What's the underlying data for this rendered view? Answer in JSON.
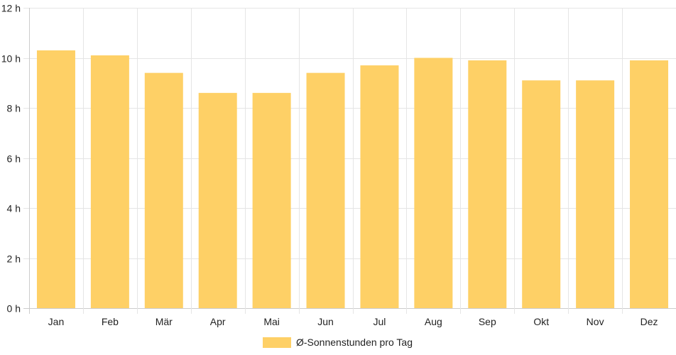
{
  "chart_data": {
    "type": "bar",
    "categories": [
      "Jan",
      "Feb",
      "Mär",
      "Apr",
      "Mai",
      "Jun",
      "Jul",
      "Aug",
      "Sep",
      "Okt",
      "Nov",
      "Dez"
    ],
    "series": [
      {
        "name": "Ø-Sonnenstunden pro Tag",
        "values": [
          10.3,
          10.1,
          9.4,
          8.6,
          8.6,
          9.4,
          9.7,
          10.0,
          9.9,
          9.1,
          9.1,
          9.9
        ]
      }
    ],
    "ylim": [
      0,
      12
    ],
    "y_ticks": [
      "0 h",
      "2 h",
      "4 h",
      "6 h",
      "8 h",
      "10 h",
      "12 h"
    ],
    "y_tick_values": [
      0,
      2,
      4,
      6,
      8,
      10,
      12
    ],
    "grid": true,
    "legend_position": "bottom",
    "colors": {
      "bar": "#fed066",
      "grid": "#e5e5e5",
      "axis": "#cccccc",
      "text": "#222222"
    }
  }
}
